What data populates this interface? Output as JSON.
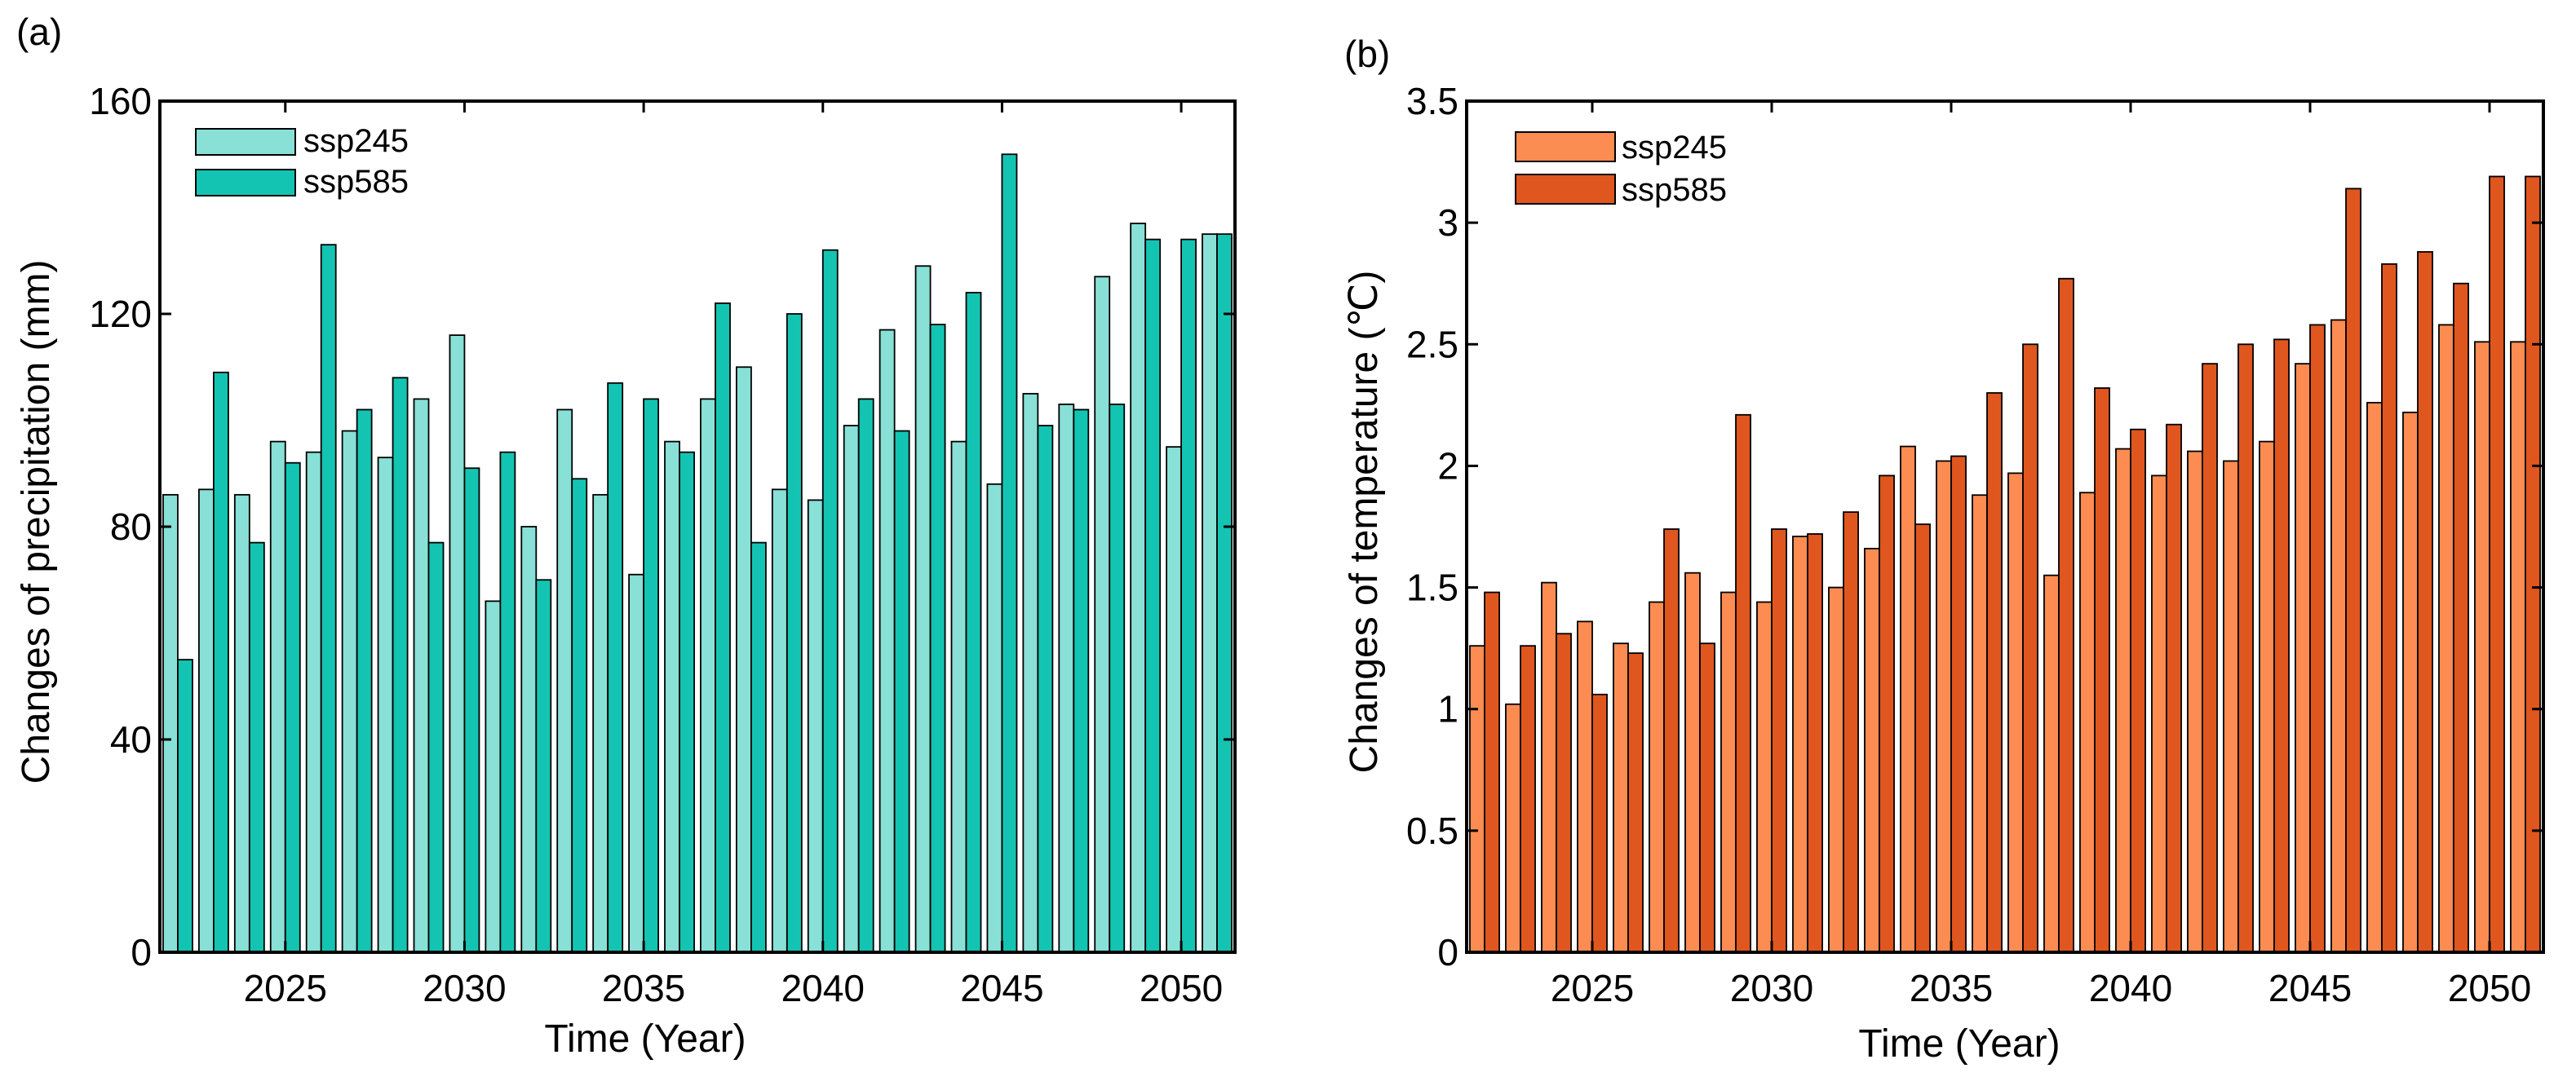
{
  "chart_data": [
    {
      "panel_label": "(a)",
      "type": "bar",
      "title": "",
      "xlabel": "Time (Year)",
      "ylabel": "Changes of precipitation (mm)",
      "xlim": [
        2021.5,
        2051.5
      ],
      "ylim": [
        0,
        160
      ],
      "xticks": [
        2025,
        2030,
        2035,
        2040,
        2045,
        2050
      ],
      "yticks": [
        0,
        40,
        80,
        120,
        160
      ],
      "xtick_labels": [
        "2025",
        "2030",
        "2035",
        "2040",
        "2045",
        "2050"
      ],
      "ytick_labels": [
        "0",
        "40",
        "80",
        "120",
        "160"
      ],
      "grid": false,
      "legend_position": "top-left",
      "categories": [
        2022,
        2023,
        2024,
        2025,
        2026,
        2027,
        2028,
        2029,
        2030,
        2031,
        2032,
        2033,
        2034,
        2035,
        2036,
        2037,
        2038,
        2039,
        2040,
        2041,
        2042,
        2043,
        2044,
        2045,
        2046,
        2047,
        2048,
        2049,
        2050,
        2051
      ],
      "series": [
        {
          "name": "ssp245",
          "color": "#88e0d6",
          "values": [
            86,
            87,
            86,
            96,
            94,
            98,
            93,
            104,
            116,
            66,
            80,
            102,
            86,
            71,
            96,
            104,
            110,
            87,
            85,
            99,
            117,
            129,
            96,
            88,
            105,
            103,
            127,
            137,
            95,
            135
          ]
        },
        {
          "name": "ssp585",
          "color": "#14c4b2",
          "values": [
            55,
            109,
            77,
            92,
            133,
            102,
            108,
            77,
            91,
            94,
            70,
            89,
            107,
            104,
            94,
            122,
            77,
            120,
            132,
            104,
            98,
            118,
            124,
            150,
            99,
            102,
            103,
            134,
            134,
            135
          ]
        }
      ]
    },
    {
      "panel_label": "(b)",
      "type": "bar",
      "title": "",
      "xlabel": "Time (Year)",
      "ylabel": "Changes of temperature (℃)",
      "xlim": [
        2021.5,
        2051.5
      ],
      "ylim": [
        0,
        3.5
      ],
      "xticks": [
        2025,
        2030,
        2035,
        2040,
        2045,
        2050
      ],
      "yticks": [
        0,
        0.5,
        1,
        1.5,
        2,
        2.5,
        3,
        3.5
      ],
      "xtick_labels": [
        "2025",
        "2030",
        "2035",
        "2040",
        "2045",
        "2050"
      ],
      "ytick_labels": [
        "0",
        "0.5",
        "1",
        "1.5",
        "2",
        "2.5",
        "3",
        "3.5"
      ],
      "grid": false,
      "legend_position": "top-left",
      "categories": [
        2022,
        2023,
        2024,
        2025,
        2026,
        2027,
        2028,
        2029,
        2030,
        2031,
        2032,
        2033,
        2034,
        2035,
        2036,
        2037,
        2038,
        2039,
        2040,
        2041,
        2042,
        2043,
        2044,
        2045,
        2046,
        2047,
        2048,
        2049,
        2050,
        2051
      ],
      "series": [
        {
          "name": "ssp245",
          "color": "#fd8c52",
          "values": [
            1.26,
            1.02,
            1.52,
            1.36,
            1.27,
            1.44,
            1.56,
            1.48,
            1.44,
            1.71,
            1.5,
            1.66,
            2.08,
            2.02,
            1.88,
            1.97,
            1.55,
            1.89,
            2.07,
            1.96,
            2.06,
            2.02,
            2.1,
            2.42,
            2.6,
            2.26,
            2.22,
            2.58,
            2.51,
            2.51
          ]
        },
        {
          "name": "ssp585",
          "color": "#e0561f",
          "values": [
            1.48,
            1.26,
            1.31,
            1.06,
            1.23,
            1.74,
            1.27,
            2.21,
            1.74,
            1.72,
            1.81,
            1.96,
            1.76,
            2.04,
            2.3,
            2.5,
            2.77,
            2.32,
            2.15,
            2.17,
            2.42,
            2.5,
            2.52,
            2.58,
            3.14,
            2.83,
            2.88,
            2.75,
            3.19,
            3.19
          ]
        }
      ]
    }
  ]
}
